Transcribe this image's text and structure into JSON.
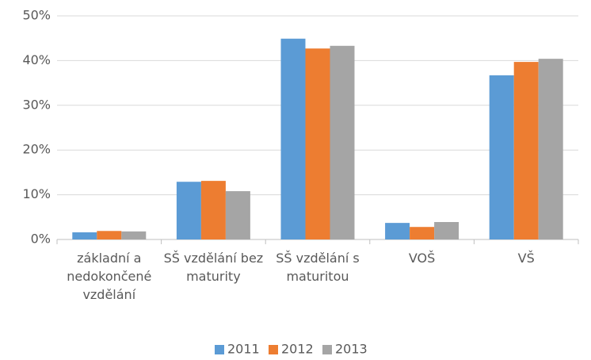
{
  "chart_data": {
    "type": "bar",
    "categories": [
      "základní a nedokončené vzdělání",
      "SŠ vzdělání bez maturity",
      "SŠ vzdělání s maturitou",
      "VOŠ",
      "VŠ"
    ],
    "series": [
      {
        "name": "2011",
        "color": "#5b9bd5",
        "values": [
          1.6,
          12.9,
          44.9,
          3.7,
          36.7
        ]
      },
      {
        "name": "2012",
        "color": "#ed7d31",
        "values": [
          1.9,
          13.1,
          42.7,
          2.8,
          39.7
        ]
      },
      {
        "name": "2013",
        "color": "#a5a5a5",
        "values": [
          1.8,
          10.8,
          43.3,
          3.9,
          40.4
        ]
      }
    ],
    "ylim": [
      0,
      50
    ],
    "yticks": [
      {
        "value": 0,
        "label": "0%"
      },
      {
        "value": 10,
        "label": "10%"
      },
      {
        "value": 20,
        "label": "20%"
      },
      {
        "value": 30,
        "label": "30%"
      },
      {
        "value": 40,
        "label": "40%"
      },
      {
        "value": 50,
        "label": "50%"
      }
    ],
    "grid": true,
    "legend": "bottom"
  }
}
